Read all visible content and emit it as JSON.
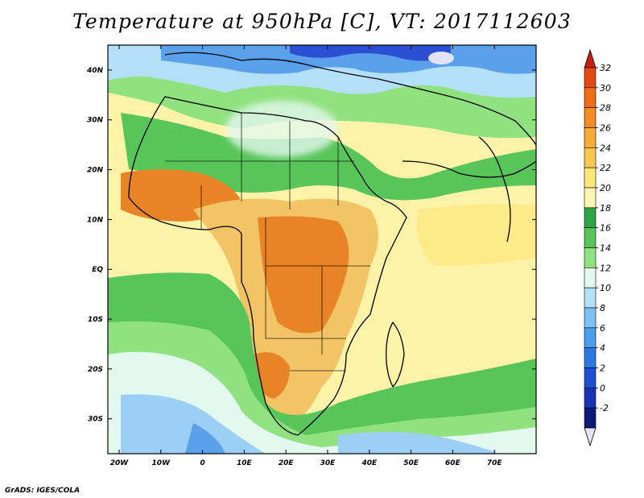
{
  "title": "Temperature at 950hPa [C], VT: 2017112603",
  "credit": "GrADS: IGES/COLA",
  "map": {
    "lon_labels": [
      "20W",
      "10W",
      "0",
      "10E",
      "20E",
      "30E",
      "40E",
      "50E",
      "60E",
      "70E"
    ],
    "lat_labels": [
      "40N",
      "30N",
      "20N",
      "10N",
      "EQ",
      "10S",
      "20S",
      "30S"
    ],
    "colors": {
      "ocean": "#fdf3a8",
      "continent": "#f3c466",
      "hot": "#e88426",
      "warm_green": "#55c35a",
      "cool_green": "#8fe27f",
      "cold": "#9ccff6",
      "colder": "#5aa0eb",
      "coldest": "#2a4fd3"
    }
  },
  "colorbar": {
    "labels": [
      "32",
      "30",
      "28",
      "26",
      "24",
      "22",
      "20",
      "18",
      "16",
      "14",
      "12",
      "10",
      "8",
      "6",
      "4",
      "2",
      "0",
      "-2"
    ],
    "colors": [
      "#c81e10",
      "#e34a12",
      "#ef6d14",
      "#f38d22",
      "#f6ad38",
      "#f8c84e",
      "#fbe67a",
      "#fbf5b2",
      "#2fa444",
      "#58c55a",
      "#8ee380",
      "#e3f8ee",
      "#b3e0f8",
      "#7ec0f3",
      "#4c9deb",
      "#2d78e0",
      "#1c4fd1",
      "#1a32b8",
      "#0c1a78",
      "#e4e2f8"
    ]
  }
}
